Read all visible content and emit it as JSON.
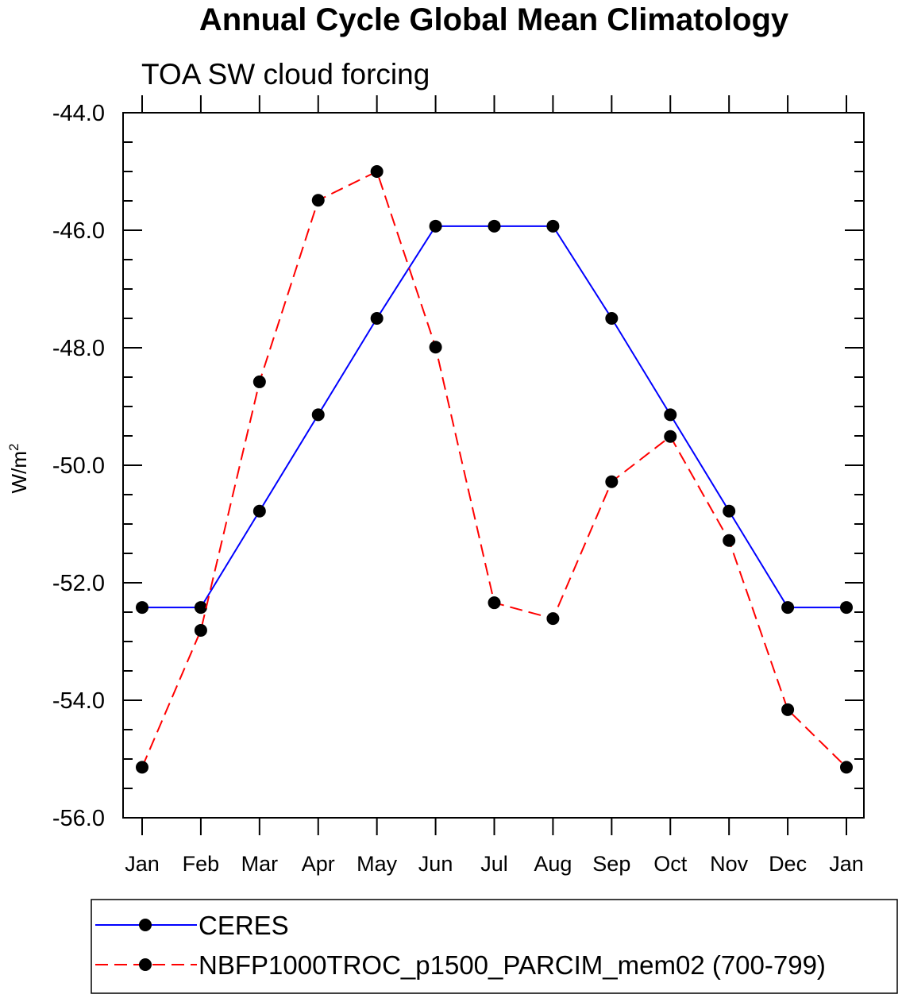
{
  "chart_data": {
    "type": "line",
    "title": "Annual Cycle Global Mean Climatology",
    "subtitle": "TOA SW cloud forcing",
    "ylabel": "W/m",
    "ylabel_sup": "2",
    "ylim": [
      -56,
      -44
    ],
    "yticks": [
      "-44.0",
      "-46.0",
      "-48.0",
      "-50.0",
      "-52.0",
      "-54.0",
      "-56.0"
    ],
    "ytick_values": [
      -44,
      -46,
      -48,
      -50,
      -52,
      -54,
      -56
    ],
    "categories": [
      "Jan",
      "Feb",
      "Mar",
      "Apr",
      "May",
      "Jun",
      "Jul",
      "Aug",
      "Sep",
      "Oct",
      "Nov",
      "Dec",
      "Jan"
    ],
    "legend_position": "bottom",
    "series": [
      {
        "name": "CERES",
        "color": "#0000ff",
        "dash": "solid",
        "values": [
          -52.42,
          -52.42,
          -50.78,
          -49.14,
          -47.5,
          -45.93,
          -45.93,
          -45.93,
          -47.5,
          -49.14,
          -50.78,
          -52.42,
          -52.42
        ]
      },
      {
        "name": "NBFP1000TROC_p1500_PARCIM_mem02 (700-799)",
        "color": "#ff0000",
        "dash": "dashed",
        "values": [
          -55.14,
          -52.81,
          -48.58,
          -45.49,
          -45.0,
          -47.99,
          -52.34,
          -52.61,
          -50.28,
          -49.51,
          -51.28,
          -54.16,
          -55.14
        ]
      }
    ]
  }
}
